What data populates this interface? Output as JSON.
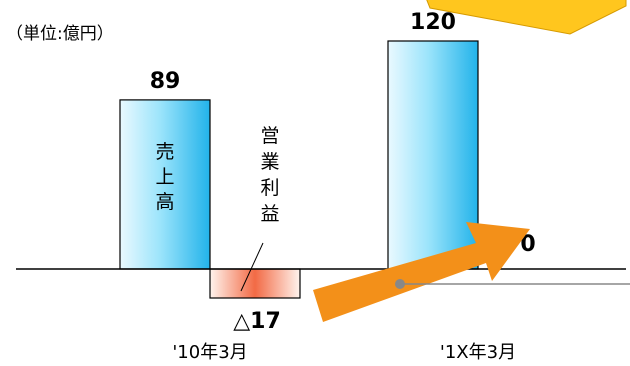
{
  "chart_data": {
    "type": "bar",
    "unit_label": "（単位:億円）",
    "categories": [
      "'10年3月",
      "'1X年3月"
    ],
    "series": [
      {
        "name": "売上高",
        "values": [
          89,
          120
        ],
        "value_labels": [
          "89",
          "120"
        ]
      },
      {
        "name": "営業利益",
        "values": [
          -17,
          0
        ],
        "value_labels": [
          "△17",
          "0"
        ]
      }
    ],
    "bar_labels": {
      "sales": "売上高",
      "profit": "営業利益"
    },
    "colors": {
      "sales_light": "#eaf9ff",
      "sales_mid": "#9be4fb",
      "sales_dark": "#22b3ea",
      "profit_light": "#fff4ee",
      "profit_dark": "#f26a45",
      "arrow": "#f39019",
      "callout": "#ffc61e",
      "axis": "#000000",
      "leader": "#888888"
    }
  }
}
